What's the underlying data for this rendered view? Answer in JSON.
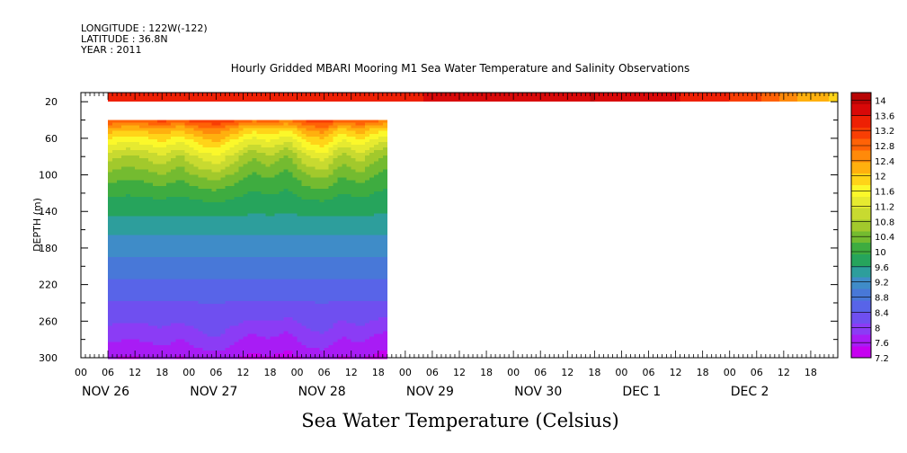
{
  "header": {
    "longitude": "LONGITUDE : 122W(-122)",
    "latitude": "LATITUDE : 36.8N",
    "year": "YEAR : 2011"
  },
  "chart_data": {
    "type": "heatmap",
    "title": "Hourly Gridded MBARI Mooring M1 Sea Water Temperature and Salinity Observations",
    "variable_label": "Sea Water Temperature (Celsius)",
    "ylabel": "DEPTH (m)",
    "xlabel": "",
    "ylim": [
      300,
      10
    ],
    "y_ticks": [
      20,
      60,
      100,
      140,
      180,
      220,
      260,
      300
    ],
    "y_inverted": true,
    "x_range_hours": [
      -6,
      162
    ],
    "x_hour_ticks": [
      "00",
      "06",
      "12",
      "18",
      "00",
      "06",
      "12",
      "18",
      "00",
      "06",
      "12",
      "18",
      "00",
      "06",
      "12",
      "18",
      "00",
      "06",
      "12",
      "18",
      "00",
      "06",
      "12",
      "18",
      "00",
      "06",
      "12",
      "18"
    ],
    "day_labels": [
      "NOV 26",
      "NOV 27",
      "NOV 28",
      "NOV 29",
      "NOV 30",
      "DEC  1",
      "DEC  2"
    ],
    "data_coverage": {
      "surface_strip_depth": [
        10,
        20
      ],
      "surface_strip_hours": [
        0,
        162
      ],
      "profile_depth": [
        40,
        300
      ],
      "profile_hours": [
        0,
        62
      ]
    },
    "surface_temperature": [
      {
        "hour": 0,
        "value": 13.4
      },
      {
        "hour": 24,
        "value": 13.4
      },
      {
        "hour": 48,
        "value": 13.5
      },
      {
        "hour": 72,
        "value": 13.6
      },
      {
        "hour": 96,
        "value": 13.8
      },
      {
        "hour": 108,
        "value": 13.9
      },
      {
        "hour": 120,
        "value": 13.7
      },
      {
        "hour": 132,
        "value": 13.5
      },
      {
        "hour": 144,
        "value": 13.1
      },
      {
        "hour": 150,
        "value": 12.6
      },
      {
        "hour": 156,
        "value": 12.2
      },
      {
        "hour": 162,
        "value": 12.0
      }
    ],
    "mean_profile": [
      {
        "depth": 40,
        "value": 13.0
      },
      {
        "depth": 50,
        "value": 12.2
      },
      {
        "depth": 60,
        "value": 11.7
      },
      {
        "depth": 70,
        "value": 11.3
      },
      {
        "depth": 80,
        "value": 10.9
      },
      {
        "depth": 100,
        "value": 10.4
      },
      {
        "depth": 120,
        "value": 10.0
      },
      {
        "depth": 140,
        "value": 9.7
      },
      {
        "depth": 160,
        "value": 9.4
      },
      {
        "depth": 180,
        "value": 9.15
      },
      {
        "depth": 200,
        "value": 8.9
      },
      {
        "depth": 220,
        "value": 8.65
      },
      {
        "depth": 240,
        "value": 8.4
      },
      {
        "depth": 260,
        "value": 8.15
      },
      {
        "depth": 280,
        "value": 7.85
      },
      {
        "depth": 300,
        "value": 7.5
      }
    ],
    "time_anomaly": [
      {
        "hour": 0,
        "value": 0.05
      },
      {
        "hour": 4,
        "value": -0.05
      },
      {
        "hour": 8,
        "value": 0.0
      },
      {
        "hour": 12,
        "value": 0.1
      },
      {
        "hour": 16,
        "value": -0.05
      },
      {
        "hour": 20,
        "value": 0.15
      },
      {
        "hour": 24,
        "value": 0.25
      },
      {
        "hour": 28,
        "value": 0.05
      },
      {
        "hour": 32,
        "value": -0.15
      },
      {
        "hour": 36,
        "value": -0.05
      },
      {
        "hour": 40,
        "value": -0.2
      },
      {
        "hour": 44,
        "value": 0.1
      },
      {
        "hour": 48,
        "value": 0.2
      },
      {
        "hour": 52,
        "value": -0.1
      },
      {
        "hour": 56,
        "value": 0.05
      },
      {
        "hour": 60,
        "value": -0.15
      },
      {
        "hour": 62,
        "value": -0.2
      }
    ],
    "colorbar": {
      "levels": [
        7.2,
        7.6,
        8,
        8.4,
        8.8,
        9.2,
        9.6,
        10,
        10.4,
        10.8,
        11.2,
        11.6,
        12,
        12.4,
        12.8,
        13.2,
        13.6,
        14
      ],
      "labels": [
        "7.2",
        "7.6",
        "8",
        "8.4",
        "8.8",
        "9.2",
        "9.6",
        "10",
        "10.4",
        "10.8",
        "11.2",
        "11.6",
        "12",
        "12.4",
        "12.8",
        "13.2",
        "13.6",
        "14"
      ],
      "min": 7.2,
      "max": 14.2,
      "colors": [
        "#c600f0",
        "#a81cf5",
        "#8b3cf5",
        "#6f4ff0",
        "#5864e8",
        "#4878d8",
        "#3f8cc8",
        "#2d9e9c",
        "#26a45c",
        "#3eac40",
        "#74bb30",
        "#a2c92c",
        "#c8da30",
        "#e6ea30",
        "#fbf82a",
        "#ffd418",
        "#ffb00e",
        "#ff8a0a",
        "#ff6206",
        "#f83e04",
        "#ee2004",
        "#d80808",
        "#b80404"
      ]
    }
  }
}
